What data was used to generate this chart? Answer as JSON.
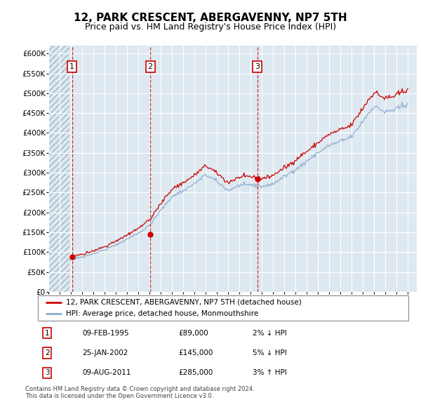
{
  "title": "12, PARK CRESCENT, ABERGAVENNY, NP7 5TH",
  "subtitle": "Price paid vs. HM Land Registry's House Price Index (HPI)",
  "title_fontsize": 11,
  "subtitle_fontsize": 9,
  "ylim": [
    0,
    620000
  ],
  "yticks": [
    0,
    50000,
    100000,
    150000,
    200000,
    250000,
    300000,
    350000,
    400000,
    450000,
    500000,
    550000,
    600000
  ],
  "ytick_labels": [
    "£0",
    "£50K",
    "£100K",
    "£150K",
    "£200K",
    "£250K",
    "£300K",
    "£350K",
    "£400K",
    "£450K",
    "£500K",
    "£550K",
    "£600K"
  ],
  "xlim_start": 1993.0,
  "xlim_end": 2025.8,
  "hatch_end": 1994.9,
  "sale_dates": [
    1995.11,
    2002.07,
    2011.6
  ],
  "sale_prices": [
    89000,
    145000,
    285000
  ],
  "sale_labels": [
    "1",
    "2",
    "3"
  ],
  "red_color": "#cc0000",
  "hpi_line_color": "#88aacc",
  "sale_line_color": "#cc0000",
  "background_color": "#dde8f0",
  "grid_color": "#ffffff",
  "legend_label_red": "12, PARK CRESCENT, ABERGAVENNY, NP7 5TH (detached house)",
  "legend_label_blue": "HPI: Average price, detached house, Monmouthshire",
  "table_entries": [
    {
      "num": "1",
      "date": "09-FEB-1995",
      "price": "£89,000",
      "hpi": "2% ↓ HPI"
    },
    {
      "num": "2",
      "date": "25-JAN-2002",
      "price": "£145,000",
      "hpi": "5% ↓ HPI"
    },
    {
      "num": "3",
      "date": "09-AUG-2011",
      "price": "£285,000",
      "hpi": "3% ↑ HPI"
    }
  ],
  "footer": "Contains HM Land Registry data © Crown copyright and database right 2024.\nThis data is licensed under the Open Government Licence v3.0."
}
